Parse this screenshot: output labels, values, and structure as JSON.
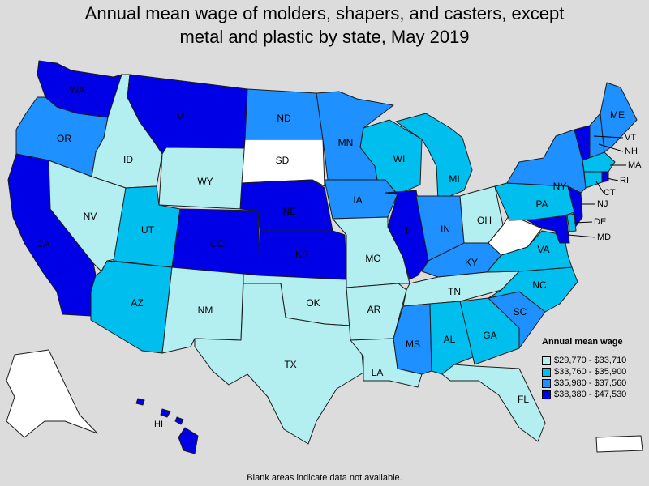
{
  "title": {
    "line1": "Annual mean wage of molders, shapers, and casters, except",
    "line2": "metal and plastic by state, May 2019"
  },
  "legend": {
    "title": "Annual mean wage",
    "bins": [
      {
        "label": "$29,770 - $33,710",
        "color": "#b3eef0"
      },
      {
        "label": "$33,760 - $35,900",
        "color": "#00bfef"
      },
      {
        "label": "$35,980 - $37,560",
        "color": "#1e90ff"
      },
      {
        "label": "$38,380 - $47,530",
        "color": "#0000e6"
      }
    ]
  },
  "no_data_color": "#ffffff",
  "footnote": "Blank areas indicate data not available.",
  "states": [
    {
      "abbr": "WA",
      "bin": 4
    },
    {
      "abbr": "OR",
      "bin": 3
    },
    {
      "abbr": "CA",
      "bin": 4
    },
    {
      "abbr": "ID",
      "bin": 1
    },
    {
      "abbr": "NV",
      "bin": 1
    },
    {
      "abbr": "MT",
      "bin": 4
    },
    {
      "abbr": "WY",
      "bin": 1
    },
    {
      "abbr": "UT",
      "bin": 2
    },
    {
      "abbr": "AZ",
      "bin": 2
    },
    {
      "abbr": "CO",
      "bin": 4
    },
    {
      "abbr": "NM",
      "bin": 1
    },
    {
      "abbr": "ND",
      "bin": 3
    },
    {
      "abbr": "SD",
      "bin": 0
    },
    {
      "abbr": "NE",
      "bin": 4
    },
    {
      "abbr": "KS",
      "bin": 4
    },
    {
      "abbr": "OK",
      "bin": 1
    },
    {
      "abbr": "TX",
      "bin": 1
    },
    {
      "abbr": "MN",
      "bin": 3
    },
    {
      "abbr": "IA",
      "bin": 3
    },
    {
      "abbr": "MO",
      "bin": 1
    },
    {
      "abbr": "AR",
      "bin": 1
    },
    {
      "abbr": "LA",
      "bin": 1
    },
    {
      "abbr": "WI",
      "bin": 2
    },
    {
      "abbr": "IL",
      "bin": 4
    },
    {
      "abbr": "MI",
      "bin": 2
    },
    {
      "abbr": "IN",
      "bin": 3
    },
    {
      "abbr": "OH",
      "bin": 1
    },
    {
      "abbr": "KY",
      "bin": 3
    },
    {
      "abbr": "TN",
      "bin": 1
    },
    {
      "abbr": "MS",
      "bin": 3
    },
    {
      "abbr": "AL",
      "bin": 2
    },
    {
      "abbr": "GA",
      "bin": 2
    },
    {
      "abbr": "FL",
      "bin": 1
    },
    {
      "abbr": "SC",
      "bin": 3
    },
    {
      "abbr": "NC",
      "bin": 2
    },
    {
      "abbr": "VA",
      "bin": 2
    },
    {
      "abbr": "WV",
      "bin": 0
    },
    {
      "abbr": "PA",
      "bin": 2
    },
    {
      "abbr": "NY",
      "bin": 3
    },
    {
      "abbr": "VT",
      "bin": 4
    },
    {
      "abbr": "NH",
      "bin": 3
    },
    {
      "abbr": "ME",
      "bin": 3
    },
    {
      "abbr": "MA",
      "bin": 2
    },
    {
      "abbr": "RI",
      "bin": 4
    },
    {
      "abbr": "CT",
      "bin": 2
    },
    {
      "abbr": "NJ",
      "bin": 4
    },
    {
      "abbr": "DE",
      "bin": 2
    },
    {
      "abbr": "MD",
      "bin": 4
    },
    {
      "abbr": "AK",
      "bin": 0
    },
    {
      "abbr": "HI",
      "bin": 4
    },
    {
      "abbr": "PR",
      "bin": 0
    }
  ]
}
